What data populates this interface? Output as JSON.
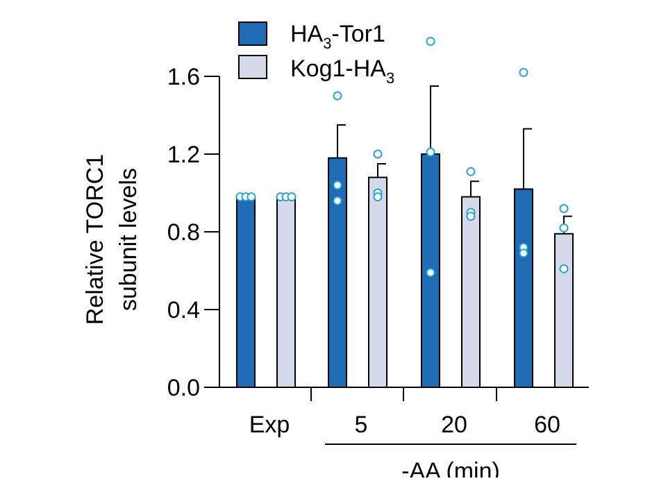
{
  "chart_data": {
    "type": "bar",
    "ylabel_line1": "Relative TORC1",
    "ylabel_line2": "subunit levels",
    "ylim": [
      0,
      1.6
    ],
    "yticks": [
      "0.0",
      "0.4",
      "0.8",
      "1.2",
      "1.6"
    ],
    "ytick_values": [
      0,
      0.4,
      0.8,
      1.2,
      1.6
    ],
    "categories": [
      "Exp",
      "5",
      "20",
      "60"
    ],
    "group_label": "-AA (min)",
    "series": [
      {
        "name_main": "HA",
        "name_sub": "3",
        "name_tail": "-Tor1",
        "color": "#1f6cb5",
        "values": [
          0.97,
          1.18,
          1.2,
          1.02
        ],
        "errors": [
          0.0,
          0.17,
          0.35,
          0.31
        ],
        "points": [
          [
            0.98,
            0.98,
            0.98
          ],
          [
            1.5,
            1.04,
            0.96
          ],
          [
            1.78,
            1.21,
            0.59
          ],
          [
            1.62,
            0.72,
            0.69
          ]
        ]
      },
      {
        "name_main": "Kog1-HA",
        "name_sub": "3",
        "name_tail": "",
        "color": "#d4daea",
        "values": [
          0.97,
          1.08,
          0.98,
          0.79
        ],
        "errors": [
          0.0,
          0.07,
          0.08,
          0.09
        ],
        "points": [
          [
            0.98,
            0.98,
            0.98
          ],
          [
            1.2,
            1.0,
            0.98
          ],
          [
            1.11,
            0.9,
            0.88
          ],
          [
            0.92,
            0.82,
            0.61
          ]
        ]
      }
    ],
    "grid": false,
    "legend_position": "top"
  },
  "colors": {
    "point_stroke": "#29a3d1",
    "axis": "#000000"
  }
}
